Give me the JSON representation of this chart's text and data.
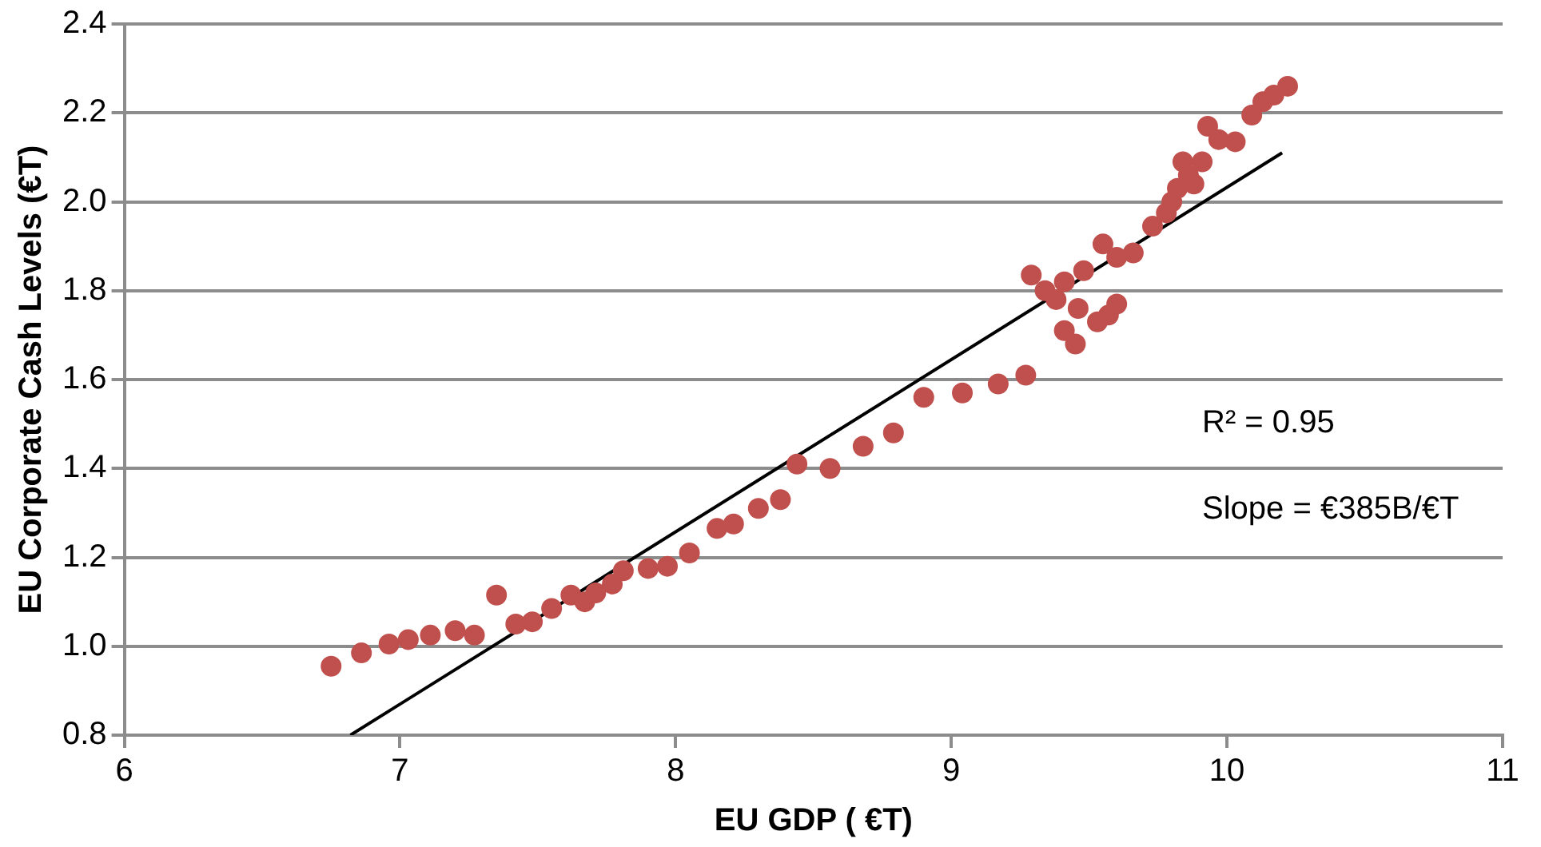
{
  "chart_data": {
    "type": "scatter",
    "xlabel": "EU GDP ( €T)",
    "ylabel": "EU Corporate Cash Levels (€T)",
    "xlim": [
      6,
      11
    ],
    "xticks": [
      6,
      7,
      8,
      9,
      10,
      11
    ],
    "ylim": [
      0.8,
      2.4
    ],
    "yticks": [
      {
        "value": 0.8,
        "label": "0.8"
      },
      {
        "value": 1.0,
        "label": "1.0"
      },
      {
        "value": 1.2,
        "label": "1.2"
      },
      {
        "value": 1.4,
        "label": "1.4"
      },
      {
        "value": 1.6,
        "label": "1.6"
      },
      {
        "value": 1.8,
        "label": "1.8"
      },
      {
        "value": 2.0,
        "label": "2.0"
      },
      {
        "value": 2.2,
        "label": "2.2"
      },
      {
        "value": 2.4,
        "label": "2.4"
      }
    ],
    "grid": "y",
    "legend": false,
    "marker": "circle",
    "annotations": [
      "R² = 0.95",
      "Slope = €385B/€T"
    ],
    "series": [
      {
        "color": "#c0504d",
        "x": [
          6.75,
          6.86,
          6.96,
          7.03,
          7.11,
          7.2,
          7.27,
          7.35,
          7.42,
          7.48,
          7.55,
          7.62,
          7.67,
          7.71,
          7.77,
          7.81,
          7.9,
          7.97,
          8.05,
          8.15,
          8.21,
          8.3,
          8.38,
          8.44,
          8.56,
          8.68,
          8.79,
          8.9,
          9.04,
          9.17,
          9.27,
          9.29,
          9.34,
          9.38,
          9.41,
          9.41,
          9.45,
          9.46,
          9.48,
          9.53,
          9.55,
          9.57,
          9.6,
          9.6,
          9.66,
          9.73,
          9.78,
          9.8,
          9.82,
          9.84,
          9.86,
          9.88,
          9.91,
          9.93,
          9.97,
          10.03,
          10.09,
          10.13,
          10.17,
          10.22
        ],
        "values": [
          0.955,
          0.985,
          1.005,
          1.015,
          1.025,
          1.035,
          1.025,
          1.115,
          1.05,
          1.055,
          1.085,
          1.115,
          1.1,
          1.12,
          1.14,
          1.17,
          1.175,
          1.18,
          1.21,
          1.265,
          1.275,
          1.31,
          1.33,
          1.41,
          1.4,
          1.45,
          1.48,
          1.56,
          1.57,
          1.59,
          1.61,
          1.835,
          1.8,
          1.78,
          1.82,
          1.71,
          1.68,
          1.76,
          1.845,
          1.73,
          1.905,
          1.745,
          1.77,
          1.875,
          1.885,
          1.945,
          1.975,
          2.0,
          2.03,
          2.09,
          2.06,
          2.04,
          2.09,
          2.17,
          2.14,
          2.135,
          2.195,
          2.225,
          2.24,
          2.26
        ]
      },
      {
        "type": "line",
        "color": "#000000",
        "marker": "none",
        "x": [
          6.82,
          10.2
        ],
        "values": [
          0.8,
          2.11
        ]
      }
    ]
  }
}
